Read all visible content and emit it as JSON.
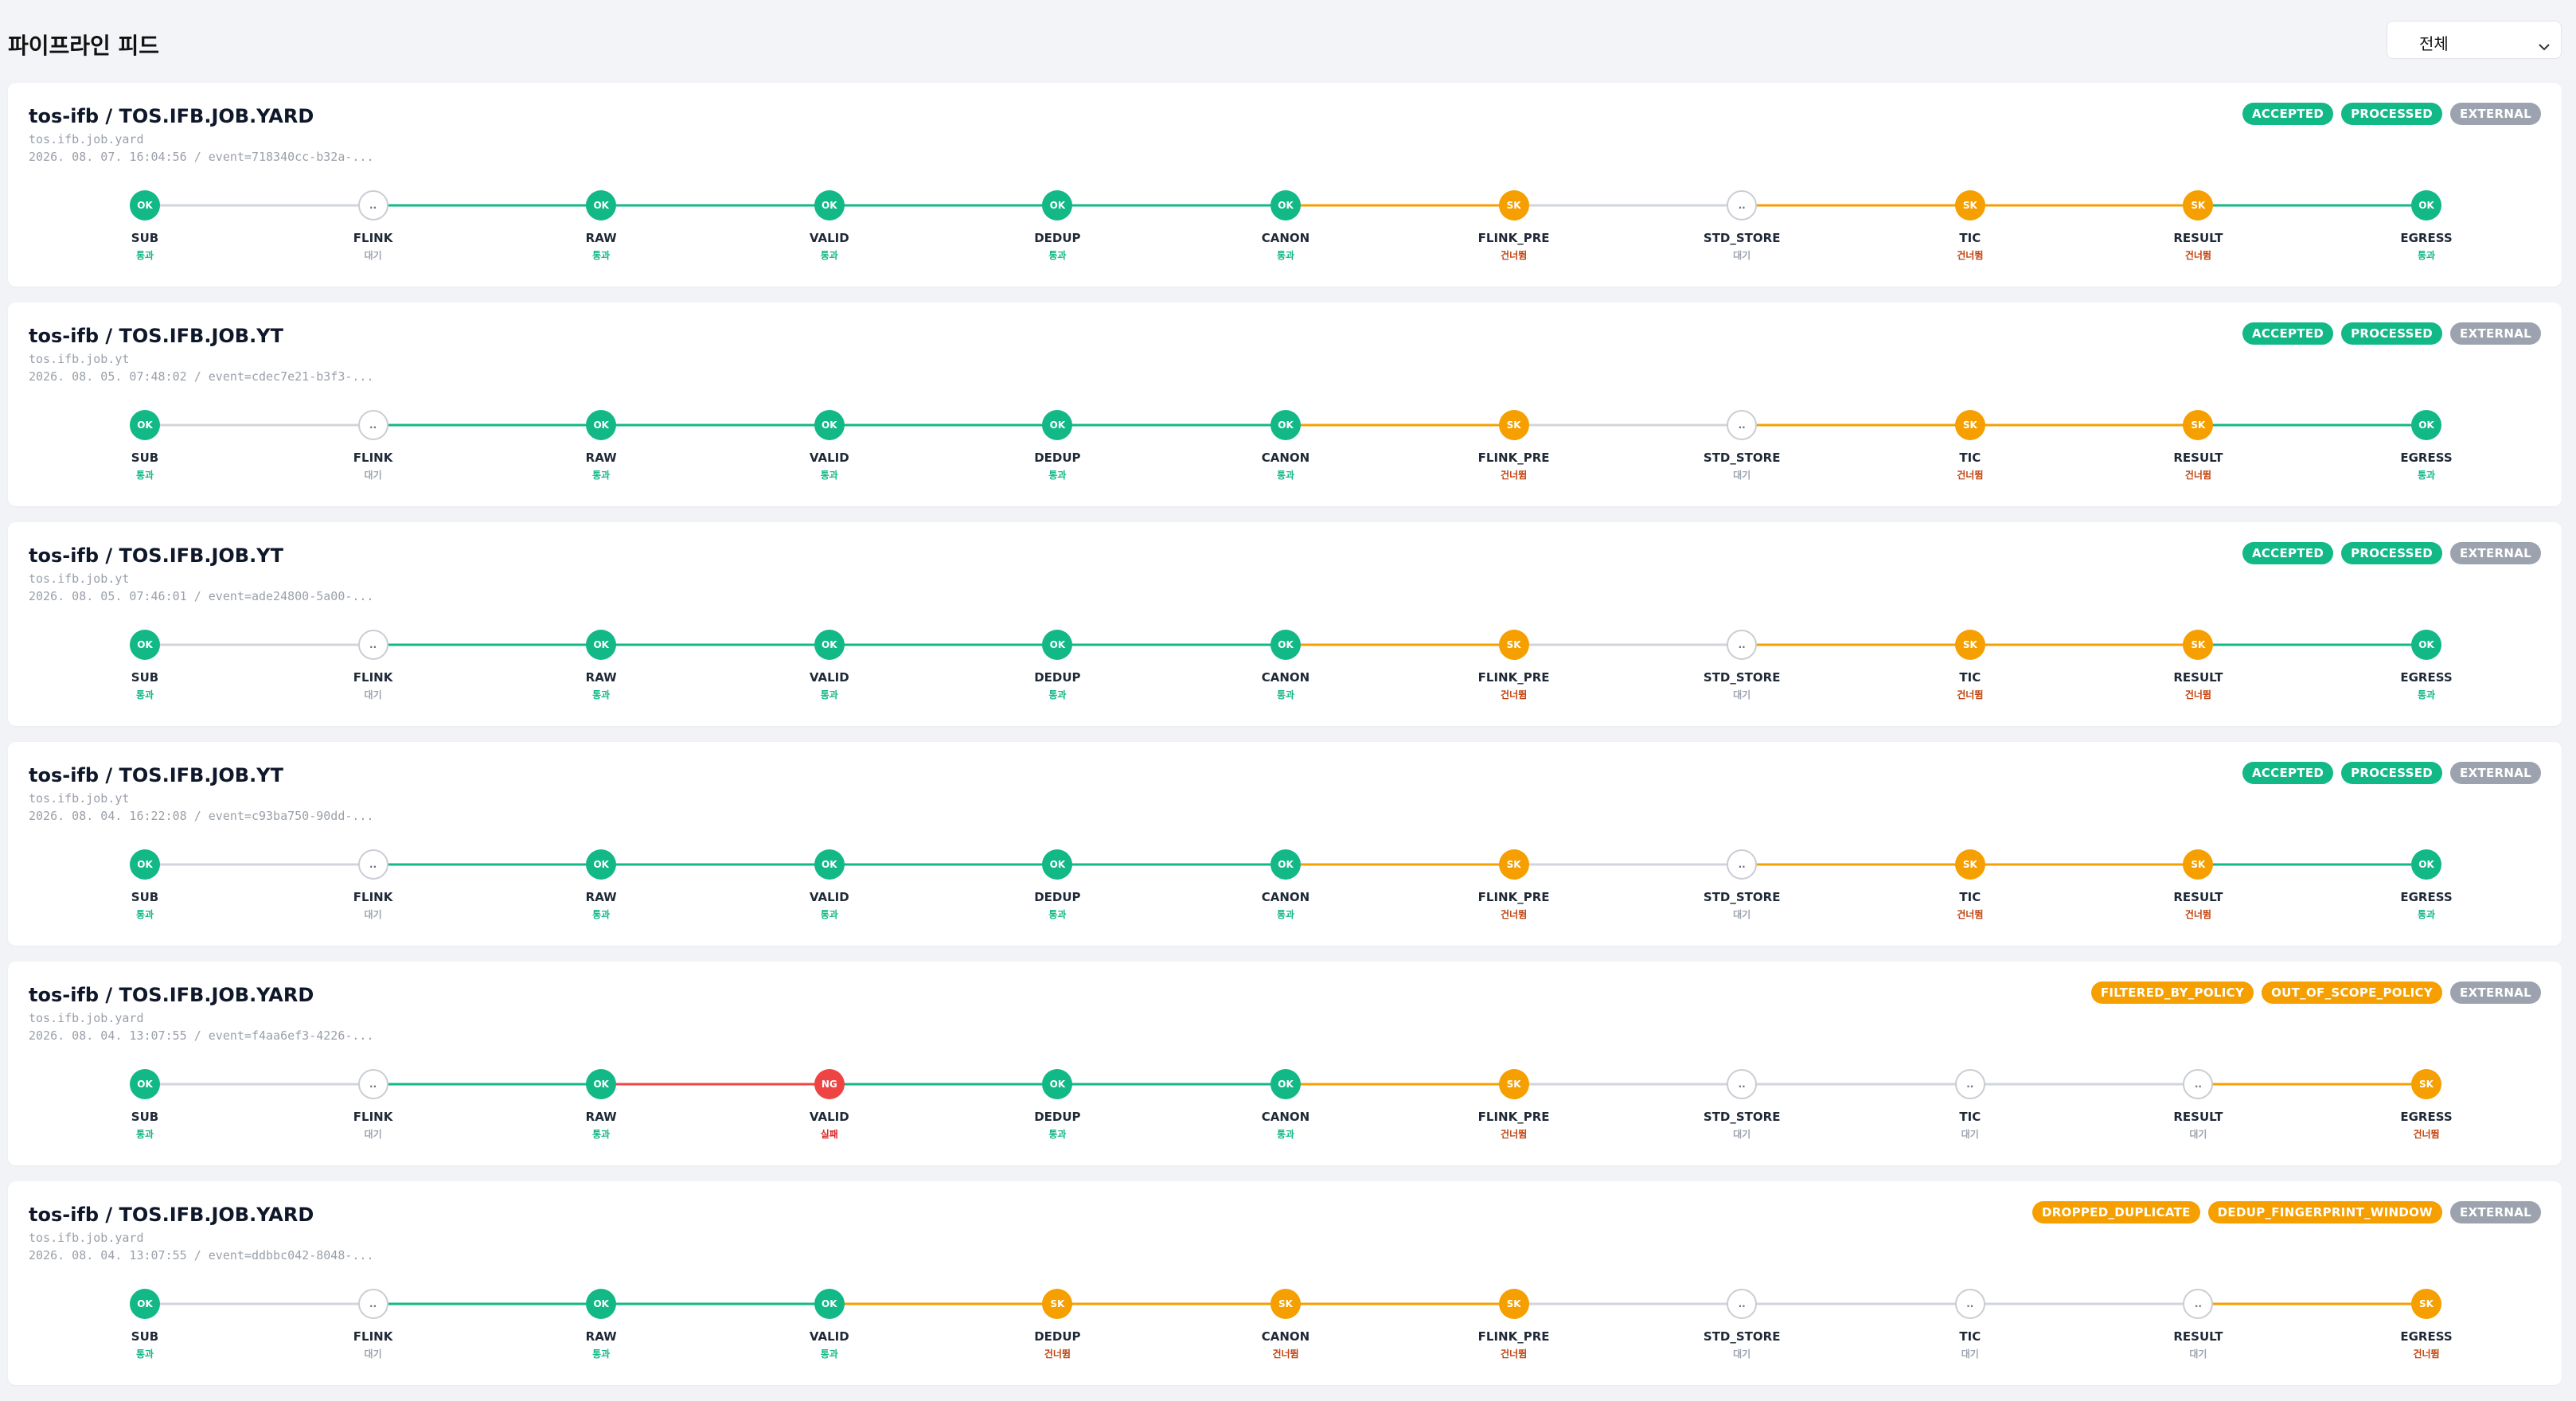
{
  "page": {
    "title": "파이프라인 피드",
    "filter": {
      "selected": "전체"
    }
  },
  "colors": {
    "ok": "#12b886",
    "skip": "#f59f00",
    "fail": "#ef4444",
    "pending_border": "#c9cdd3",
    "line_idle": "#d1d5db",
    "external_badge": "#9ca3af",
    "status_ok_text": "#12b886",
    "status_skip_text": "#c2410c",
    "status_fail_text": "#dc2626",
    "status_pending_text": "#9ca3af"
  },
  "stage_names": [
    "SUB",
    "FLINK",
    "RAW",
    "VALID",
    "DEDUP",
    "CANON",
    "FLINK_PRE",
    "STD_STORE",
    "TIC",
    "RESULT",
    "EGRESS"
  ],
  "status_text": {
    "ok": "통과",
    "pending": "대기",
    "skip": "건너뜀",
    "fail": "실패"
  },
  "node_text": {
    "ok": "OK",
    "pending": "..",
    "skip": "SK",
    "fail": "NG"
  },
  "cards": [
    {
      "title": "tos-ifb / TOS.IFB.JOB.YARD",
      "sub": "tos.ifb.job.yard",
      "meta": "2026. 08. 07. 16:04:56 / event=718340cc-b32a-...",
      "badges": [
        {
          "label": "ACCEPTED",
          "kind": "ok"
        },
        {
          "label": "PROCESSED",
          "kind": "ok"
        },
        {
          "label": "EXTERNAL",
          "kind": "external"
        }
      ],
      "stages": [
        "ok",
        "pending",
        "ok",
        "ok",
        "ok",
        "ok",
        "skip",
        "pending",
        "skip",
        "skip",
        "ok"
      ]
    },
    {
      "title": "tos-ifb / TOS.IFB.JOB.YT",
      "sub": "tos.ifb.job.yt",
      "meta": "2026. 08. 05. 07:48:02 / event=cdec7e21-b3f3-...",
      "badges": [
        {
          "label": "ACCEPTED",
          "kind": "ok"
        },
        {
          "label": "PROCESSED",
          "kind": "ok"
        },
        {
          "label": "EXTERNAL",
          "kind": "external"
        }
      ],
      "stages": [
        "ok",
        "pending",
        "ok",
        "ok",
        "ok",
        "ok",
        "skip",
        "pending",
        "skip",
        "skip",
        "ok"
      ]
    },
    {
      "title": "tos-ifb / TOS.IFB.JOB.YT",
      "sub": "tos.ifb.job.yt",
      "meta": "2026. 08. 05. 07:46:01 / event=ade24800-5a00-...",
      "badges": [
        {
          "label": "ACCEPTED",
          "kind": "ok"
        },
        {
          "label": "PROCESSED",
          "kind": "ok"
        },
        {
          "label": "EXTERNAL",
          "kind": "external"
        }
      ],
      "stages": [
        "ok",
        "pending",
        "ok",
        "ok",
        "ok",
        "ok",
        "skip",
        "pending",
        "skip",
        "skip",
        "ok"
      ]
    },
    {
      "title": "tos-ifb / TOS.IFB.JOB.YT",
      "sub": "tos.ifb.job.yt",
      "meta": "2026. 08. 04. 16:22:08 / event=c93ba750-90dd-...",
      "badges": [
        {
          "label": "ACCEPTED",
          "kind": "ok"
        },
        {
          "label": "PROCESSED",
          "kind": "ok"
        },
        {
          "label": "EXTERNAL",
          "kind": "external"
        }
      ],
      "stages": [
        "ok",
        "pending",
        "ok",
        "ok",
        "ok",
        "ok",
        "skip",
        "pending",
        "skip",
        "skip",
        "ok"
      ]
    },
    {
      "title": "tos-ifb / TOS.IFB.JOB.YARD",
      "sub": "tos.ifb.job.yard",
      "meta": "2026. 08. 04. 13:07:55 / event=f4aa6ef3-4226-...",
      "badges": [
        {
          "label": "FILTERED_BY_POLICY",
          "kind": "skip"
        },
        {
          "label": "OUT_OF_SCOPE_POLICY",
          "kind": "skip"
        },
        {
          "label": "EXTERNAL",
          "kind": "external"
        }
      ],
      "stages": [
        "ok",
        "pending",
        "ok",
        "fail",
        "ok",
        "ok",
        "skip",
        "pending",
        "pending",
        "pending",
        "skip"
      ]
    },
    {
      "title": "tos-ifb / TOS.IFB.JOB.YARD",
      "sub": "tos.ifb.job.yard",
      "meta": "2026. 08. 04. 13:07:55 / event=ddbbc042-8048-...",
      "badges": [
        {
          "label": "DROPPED_DUPLICATE",
          "kind": "skip"
        },
        {
          "label": "DEDUP_FINGERPRINT_WINDOW",
          "kind": "skip"
        },
        {
          "label": "EXTERNAL",
          "kind": "external"
        }
      ],
      "stages": [
        "ok",
        "pending",
        "ok",
        "ok",
        "skip",
        "skip",
        "skip",
        "pending",
        "pending",
        "pending",
        "skip"
      ]
    }
  ]
}
